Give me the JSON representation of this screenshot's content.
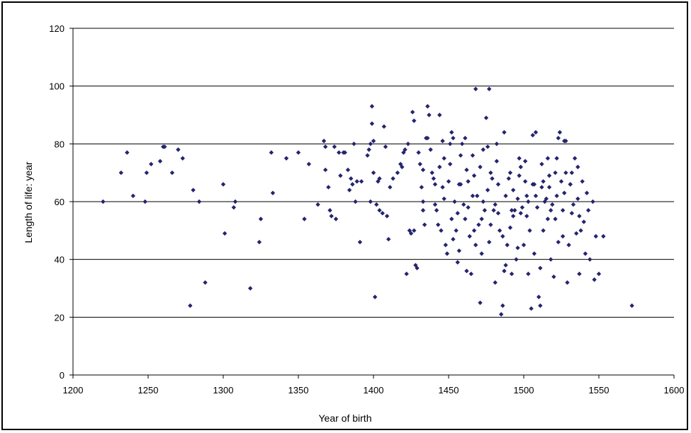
{
  "chart_data": {
    "type": "scatter",
    "title": "",
    "xlabel": "Year of birth",
    "ylabel": "Length of life: year",
    "xlim": [
      1200,
      1600
    ],
    "ylim": [
      0,
      120
    ],
    "xticks": [
      1200,
      1250,
      1300,
      1350,
      1400,
      1450,
      1500,
      1550,
      1600
    ],
    "yticks": [
      0,
      20,
      40,
      60,
      80,
      100,
      120
    ],
    "grid": "horizontal",
    "legend": "none",
    "marker_color": "#24246e",
    "points": [
      [
        1220,
        60
      ],
      [
        1232,
        70
      ],
      [
        1236,
        77
      ],
      [
        1240,
        62
      ],
      [
        1248,
        60
      ],
      [
        1249,
        70
      ],
      [
        1252,
        73
      ],
      [
        1258,
        74
      ],
      [
        1260,
        79
      ],
      [
        1261,
        79
      ],
      [
        1266,
        70
      ],
      [
        1270,
        78
      ],
      [
        1273,
        75
      ],
      [
        1278,
        24
      ],
      [
        1280,
        64
      ],
      [
        1284,
        60
      ],
      [
        1288,
        32
      ],
      [
        1300,
        66
      ],
      [
        1301,
        49
      ],
      [
        1307,
        58
      ],
      [
        1308,
        60
      ],
      [
        1318,
        30
      ],
      [
        1324,
        46
      ],
      [
        1325,
        54
      ],
      [
        1332,
        77
      ],
      [
        1333,
        63
      ],
      [
        1342,
        75
      ],
      [
        1350,
        77
      ],
      [
        1354,
        54
      ],
      [
        1357,
        73
      ],
      [
        1363,
        59
      ],
      [
        1367,
        81
      ],
      [
        1368,
        79
      ],
      [
        1368,
        71
      ],
      [
        1370,
        65
      ],
      [
        1371,
        57
      ],
      [
        1372,
        55
      ],
      [
        1374,
        79
      ],
      [
        1375,
        54
      ],
      [
        1377,
        77
      ],
      [
        1378,
        69
      ],
      [
        1380,
        77
      ],
      [
        1381,
        77
      ],
      [
        1383,
        71
      ],
      [
        1384,
        64
      ],
      [
        1385,
        68
      ],
      [
        1386,
        66
      ],
      [
        1387,
        80
      ],
      [
        1388,
        60
      ],
      [
        1389,
        67
      ],
      [
        1391,
        46
      ],
      [
        1392,
        67
      ],
      [
        1396,
        76
      ],
      [
        1397,
        78
      ],
      [
        1398,
        80
      ],
      [
        1398,
        60
      ],
      [
        1399,
        87
      ],
      [
        1399,
        93
      ],
      [
        1400,
        81
      ],
      [
        1400,
        70
      ],
      [
        1401,
        27
      ],
      [
        1402,
        59
      ],
      [
        1403,
        67
      ],
      [
        1404,
        68
      ],
      [
        1404,
        57
      ],
      [
        1406,
        56
      ],
      [
        1407,
        86
      ],
      [
        1408,
        79
      ],
      [
        1409,
        55
      ],
      [
        1410,
        47
      ],
      [
        1411,
        65
      ],
      [
        1413,
        68
      ],
      [
        1416,
        70
      ],
      [
        1418,
        73
      ],
      [
        1419,
        72
      ],
      [
        1420,
        77
      ],
      [
        1421,
        78
      ],
      [
        1422,
        35
      ],
      [
        1423,
        80
      ],
      [
        1424,
        50
      ],
      [
        1425,
        49
      ],
      [
        1426,
        91
      ],
      [
        1427,
        88
      ],
      [
        1428,
        38
      ],
      [
        1429,
        37
      ],
      [
        1430,
        77
      ],
      [
        1431,
        73
      ],
      [
        1432,
        65
      ],
      [
        1433,
        60
      ],
      [
        1434,
        52
      ],
      [
        1435,
        82
      ],
      [
        1436,
        93
      ],
      [
        1437,
        90
      ],
      [
        1438,
        78
      ],
      [
        1439,
        70
      ],
      [
        1440,
        68
      ],
      [
        1441,
        66
      ],
      [
        1442,
        57
      ],
      [
        1443,
        52
      ],
      [
        1444,
        90
      ],
      [
        1445,
        50
      ],
      [
        1446,
        81
      ],
      [
        1447,
        61
      ],
      [
        1448,
        45
      ],
      [
        1449,
        42
      ],
      [
        1450,
        67
      ],
      [
        1451,
        73
      ],
      [
        1452,
        84
      ],
      [
        1453,
        82
      ],
      [
        1454,
        60
      ],
      [
        1455,
        50
      ],
      [
        1456,
        39
      ],
      [
        1457,
        66
      ],
      [
        1458,
        76
      ],
      [
        1459,
        80
      ],
      [
        1460,
        59
      ],
      [
        1461,
        54
      ],
      [
        1462,
        71
      ],
      [
        1463,
        67
      ],
      [
        1464,
        48
      ],
      [
        1465,
        35
      ],
      [
        1466,
        76
      ],
      [
        1467,
        69
      ],
      [
        1468,
        99
      ],
      [
        1469,
        62
      ],
      [
        1470,
        52
      ],
      [
        1471,
        25
      ],
      [
        1472,
        42
      ],
      [
        1473,
        60
      ],
      [
        1474,
        57
      ],
      [
        1475,
        89
      ],
      [
        1476,
        79
      ],
      [
        1477,
        99
      ],
      [
        1478,
        70
      ],
      [
        1479,
        68
      ],
      [
        1480,
        57
      ],
      [
        1481,
        32
      ],
      [
        1482,
        74
      ],
      [
        1483,
        56
      ],
      [
        1484,
        50
      ],
      [
        1485,
        21
      ],
      [
        1486,
        24
      ],
      [
        1487,
        84
      ],
      [
        1488,
        62
      ],
      [
        1489,
        45
      ],
      [
        1490,
        68
      ],
      [
        1491,
        70
      ],
      [
        1492,
        35
      ],
      [
        1493,
        64
      ],
      [
        1494,
        57
      ],
      [
        1495,
        40
      ],
      [
        1496,
        61
      ],
      [
        1497,
        75
      ],
      [
        1498,
        56
      ],
      [
        1499,
        58
      ],
      [
        1500,
        45
      ],
      [
        1501,
        67
      ],
      [
        1502,
        55
      ],
      [
        1503,
        60
      ],
      [
        1504,
        50
      ],
      [
        1505,
        23
      ],
      [
        1506,
        83
      ],
      [
        1507,
        66
      ],
      [
        1508,
        84
      ],
      [
        1509,
        58
      ],
      [
        1510,
        27
      ],
      [
        1511,
        24
      ],
      [
        1512,
        73
      ],
      [
        1513,
        67
      ],
      [
        1514,
        60
      ],
      [
        1515,
        61
      ],
      [
        1516,
        54
      ],
      [
        1517,
        65
      ],
      [
        1518,
        40
      ],
      [
        1519,
        59
      ],
      [
        1520,
        34
      ],
      [
        1521,
        70
      ],
      [
        1522,
        62
      ],
      [
        1523,
        82
      ],
      [
        1524,
        84
      ],
      [
        1525,
        67
      ],
      [
        1526,
        57
      ],
      [
        1527,
        63
      ],
      [
        1528,
        81
      ],
      [
        1529,
        32
      ],
      [
        1530,
        45
      ],
      [
        1531,
        66
      ],
      [
        1532,
        70
      ],
      [
        1533,
        59
      ],
      [
        1534,
        75
      ],
      [
        1535,
        49
      ],
      [
        1536,
        72
      ],
      [
        1537,
        35
      ],
      [
        1538,
        50
      ],
      [
        1539,
        67
      ],
      [
        1540,
        53
      ],
      [
        1541,
        42
      ],
      [
        1542,
        63
      ],
      [
        1543,
        57
      ],
      [
        1544,
        40
      ],
      [
        1546,
        60
      ],
      [
        1547,
        33
      ],
      [
        1548,
        48
      ],
      [
        1550,
        35
      ],
      [
        1553,
        48
      ],
      [
        1572,
        24
      ],
      [
        1427,
        50
      ],
      [
        1433,
        71
      ],
      [
        1441,
        59
      ],
      [
        1447,
        75
      ],
      [
        1453,
        47
      ],
      [
        1458,
        66
      ],
      [
        1463,
        58
      ],
      [
        1468,
        45
      ],
      [
        1473,
        78
      ],
      [
        1478,
        52
      ],
      [
        1483,
        66
      ],
      [
        1488,
        38
      ],
      [
        1493,
        55
      ],
      [
        1498,
        72
      ],
      [
        1503,
        35
      ],
      [
        1508,
        62
      ],
      [
        1513,
        50
      ],
      [
        1518,
        57
      ],
      [
        1523,
        46
      ],
      [
        1528,
        70
      ],
      [
        1433,
        57
      ],
      [
        1444,
        72
      ],
      [
        1452,
        54
      ],
      [
        1457,
        43
      ],
      [
        1462,
        36
      ],
      [
        1466,
        62
      ],
      [
        1471,
        72
      ],
      [
        1476,
        64
      ],
      [
        1481,
        59
      ],
      [
        1486,
        48
      ],
      [
        1491,
        51
      ],
      [
        1496,
        44
      ],
      [
        1501,
        74
      ],
      [
        1506,
        66
      ],
      [
        1511,
        37
      ],
      [
        1516,
        75
      ],
      [
        1521,
        54
      ],
      [
        1526,
        48
      ],
      [
        1531,
        66
      ],
      [
        1536,
        61
      ],
      [
        1436,
        82
      ],
      [
        1446,
        65
      ],
      [
        1451,
        80
      ],
      [
        1456,
        56
      ],
      [
        1461,
        82
      ],
      [
        1467,
        50
      ],
      [
        1472,
        54
      ],
      [
        1477,
        46
      ],
      [
        1482,
        80
      ],
      [
        1487,
        36
      ],
      [
        1492,
        57
      ],
      [
        1497,
        69
      ],
      [
        1502,
        62
      ],
      [
        1507,
        42
      ],
      [
        1512,
        65
      ],
      [
        1517,
        69
      ],
      [
        1522,
        75
      ],
      [
        1527,
        81
      ],
      [
        1532,
        56
      ],
      [
        1537,
        55
      ]
    ]
  }
}
